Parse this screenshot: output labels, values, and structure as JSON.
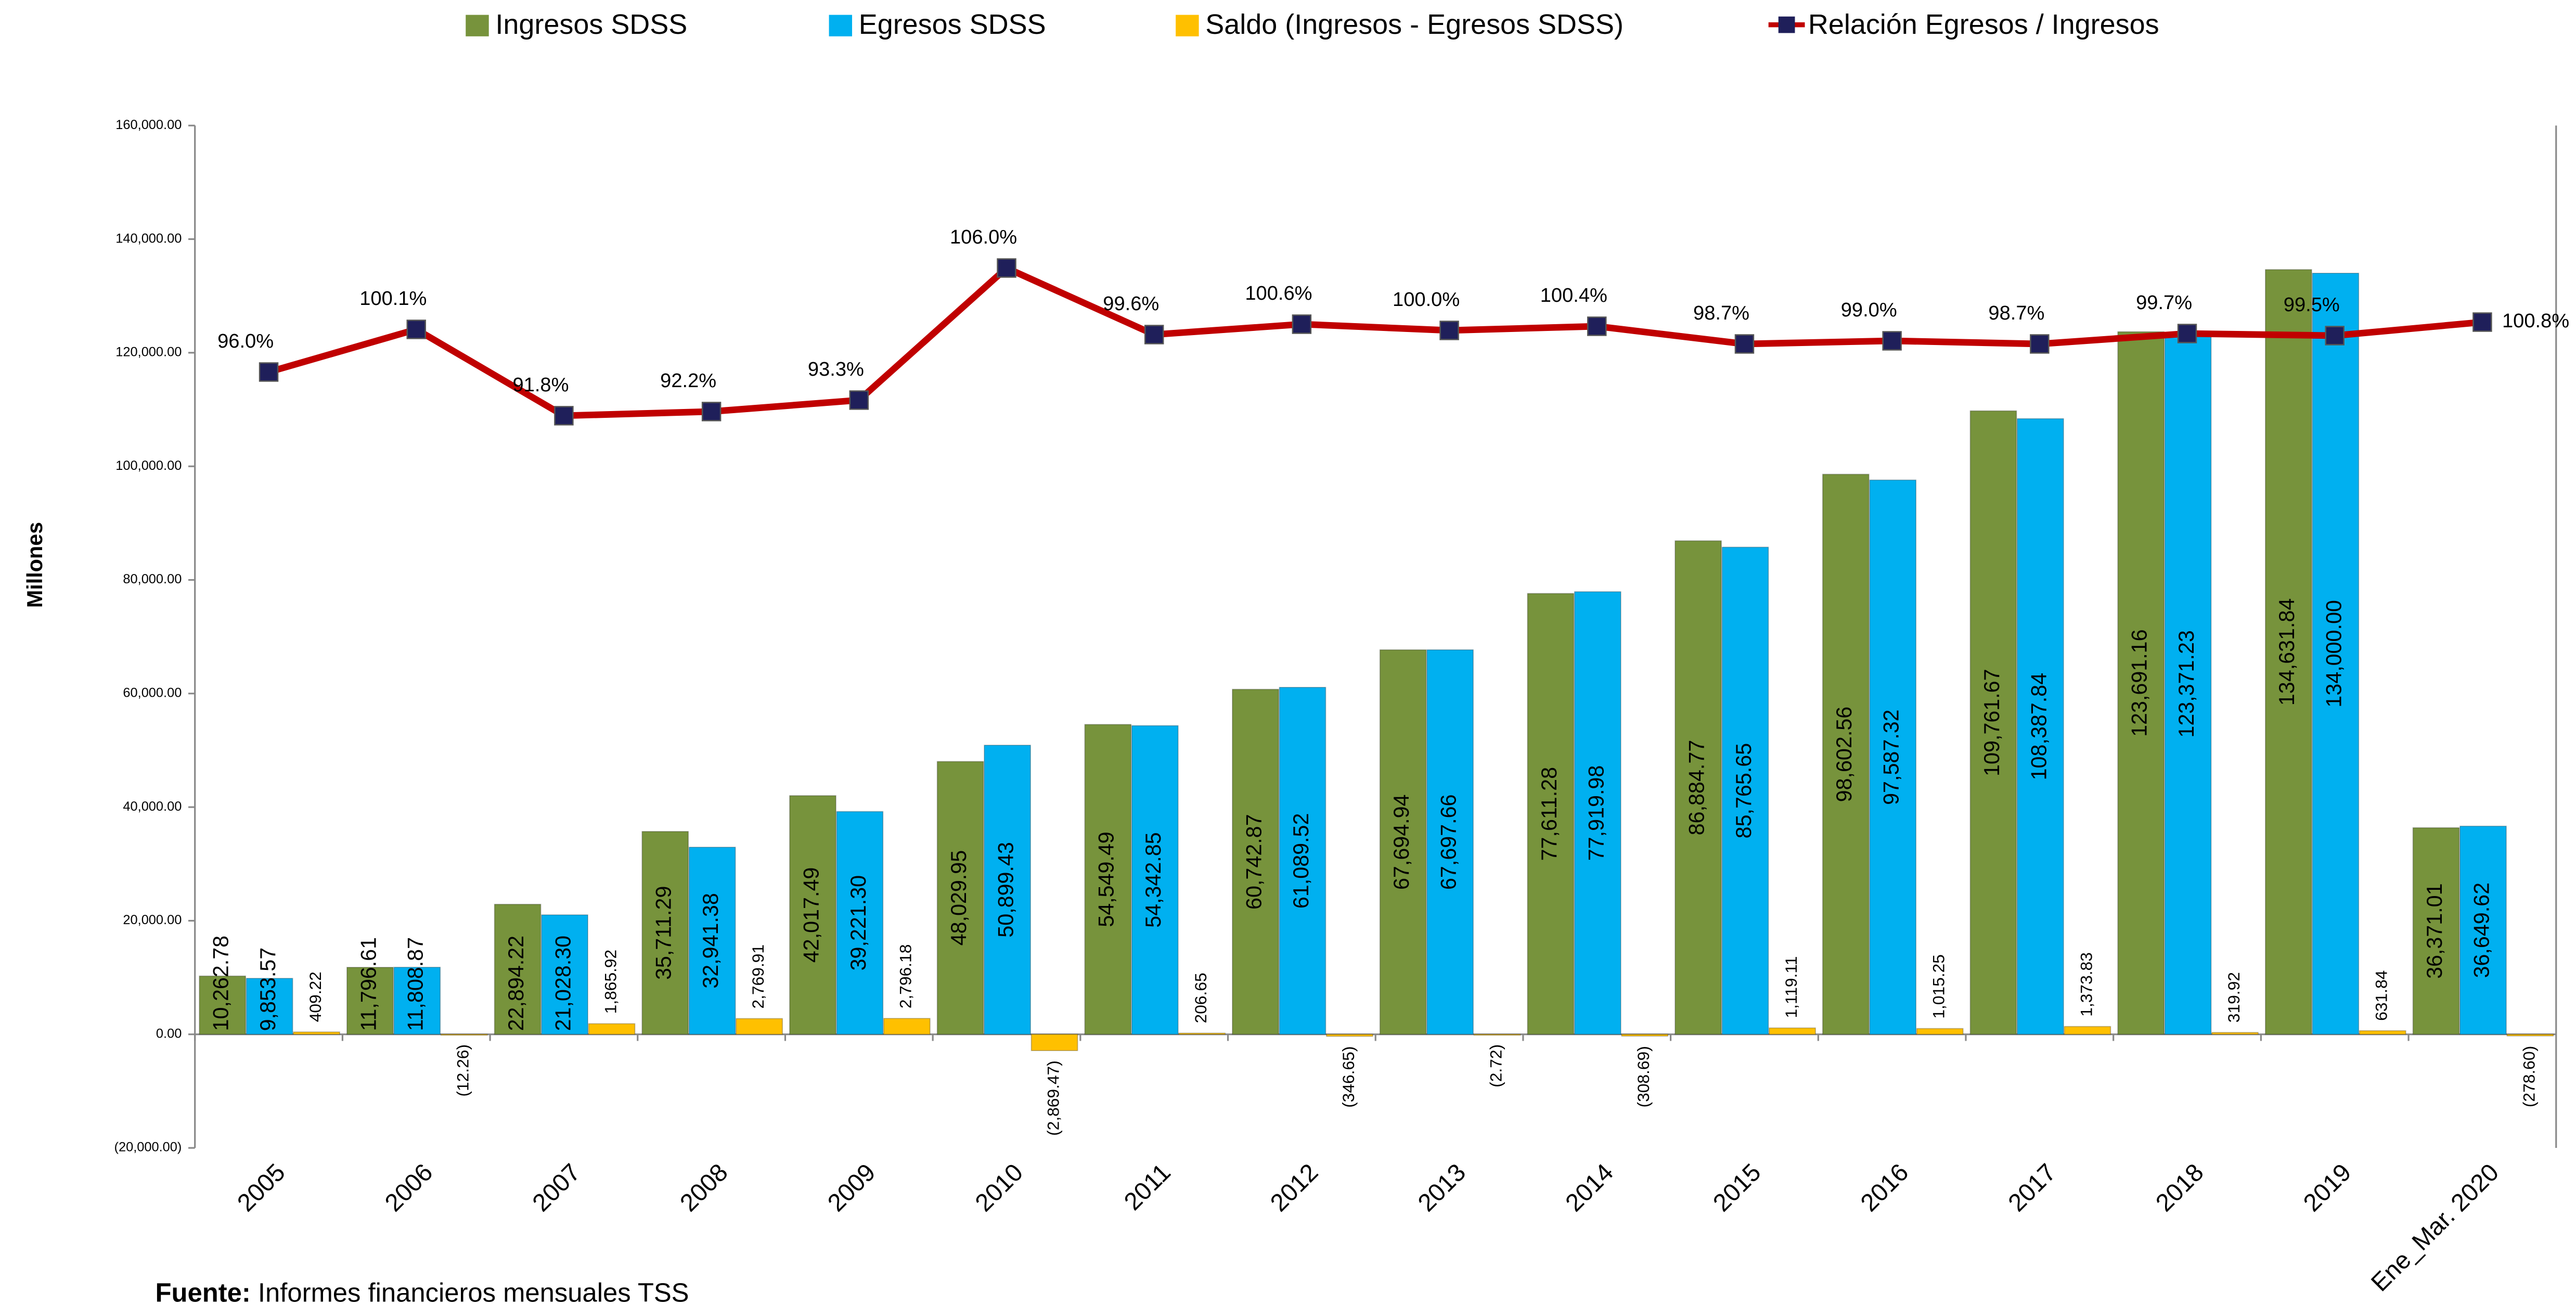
{
  "chart_data": {
    "type": "bar",
    "y_axis_label": "Millones",
    "source_label": "Fuente:",
    "source": "Informes financieros mensuales TSS",
    "categories": [
      "2005",
      "2006",
      "2007",
      "2008",
      "2009",
      "2010",
      "2011",
      "2012",
      "2013",
      "2014",
      "2015",
      "2016",
      "2017",
      "2018",
      "2019",
      "Ene_Mar. 2020"
    ],
    "ylim": [
      -20000,
      160000
    ],
    "yticks": [
      {
        "value": -20000,
        "label": "(20,000.00)"
      },
      {
        "value": 0,
        "label": "0.00"
      },
      {
        "value": 20000,
        "label": "20,000.00"
      },
      {
        "value": 40000,
        "label": "40,000.00"
      },
      {
        "value": 60000,
        "label": "60,000.00"
      },
      {
        "value": 80000,
        "label": "80,000.00"
      },
      {
        "value": 100000,
        "label": "100,000.00"
      },
      {
        "value": 120000,
        "label": "120,000.00"
      },
      {
        "value": 140000,
        "label": "140,000.00"
      },
      {
        "value": 160000,
        "label": "160,000.00"
      }
    ],
    "y2lim": [
      21.4,
      119.7
    ],
    "negative_color": "#ff0000",
    "series": [
      {
        "name": "Ingresos SDSS",
        "color": "#77933c",
        "type": "bar",
        "values": [
          10262.78,
          11796.61,
          22894.22,
          35711.29,
          42017.49,
          48029.95,
          54549.49,
          60742.87,
          67694.94,
          77611.28,
          86884.77,
          98602.56,
          109761.67,
          123691.16,
          134631.84,
          36371.01
        ],
        "value_labels": [
          "10,262.78",
          "11,796.61",
          "22,894.22",
          "35,711.29",
          "42,017.49",
          "48,029.95",
          "54,549.49",
          "60,742.87",
          "67,694.94",
          "77,611.28",
          "86,884.77",
          "98,602.56",
          "109,761.67",
          "123,691.16",
          "134,631.84",
          "36,371.01"
        ]
      },
      {
        "name": "Egresos SDSS",
        "color": "#00b0f0",
        "type": "bar",
        "values": [
          9853.57,
          11808.87,
          21028.3,
          32941.38,
          39221.3,
          50899.43,
          54342.85,
          61089.52,
          67697.66,
          77919.98,
          85765.65,
          97587.32,
          108387.84,
          123371.23,
          134000.0,
          36649.62
        ],
        "value_labels": [
          "9,853.57",
          "11,808.87",
          "21,028.30",
          "32,941.38",
          "39,221.30",
          "50,899.43",
          "54,342.85",
          "61,089.52",
          "67,697.66",
          "77,919.98",
          "85,765.65",
          "97,587.32",
          "108,387.84",
          "123,371.23",
          "134,000.00",
          "36,649.62"
        ]
      },
      {
        "name": "Saldo (Ingresos - Egresos SDSS)",
        "color": "#ffc000",
        "type": "bar",
        "values": [
          409.22,
          -12.26,
          1865.92,
          2769.91,
          2796.18,
          -2869.47,
          206.65,
          -346.65,
          -2.72,
          -308.69,
          1119.11,
          1015.25,
          1373.83,
          319.92,
          631.84,
          -278.6
        ],
        "value_labels": [
          "409.22",
          "(12.26)",
          "1,865.92",
          "2,769.91",
          "2,796.18",
          "(2,869.47)",
          "206.65",
          "(346.65)",
          "(2.72)",
          "(308.69)",
          "1,119.11",
          "1,015.25",
          "1,373.83",
          "319.92",
          "631.84",
          "(278.60)"
        ]
      },
      {
        "name": "Relación Egresos / Ingresos",
        "color": "#c00000",
        "marker_color": "#1f1f5a",
        "type": "line",
        "axis": "y2",
        "values": [
          96.0,
          100.1,
          91.8,
          92.2,
          93.3,
          106.0,
          99.6,
          100.6,
          100.0,
          100.4,
          98.7,
          99.0,
          98.7,
          99.7,
          99.5,
          100.8
        ],
        "value_labels": [
          "96.0%",
          "100.1%",
          "91.8%",
          "92.2%",
          "93.3%",
          "106.0%",
          "99.6%",
          "100.6%",
          "100.0%",
          "100.4%",
          "98.7%",
          "99.0%",
          "98.7%",
          "99.7%",
          "99.5%",
          "100.8%"
        ]
      }
    ]
  }
}
